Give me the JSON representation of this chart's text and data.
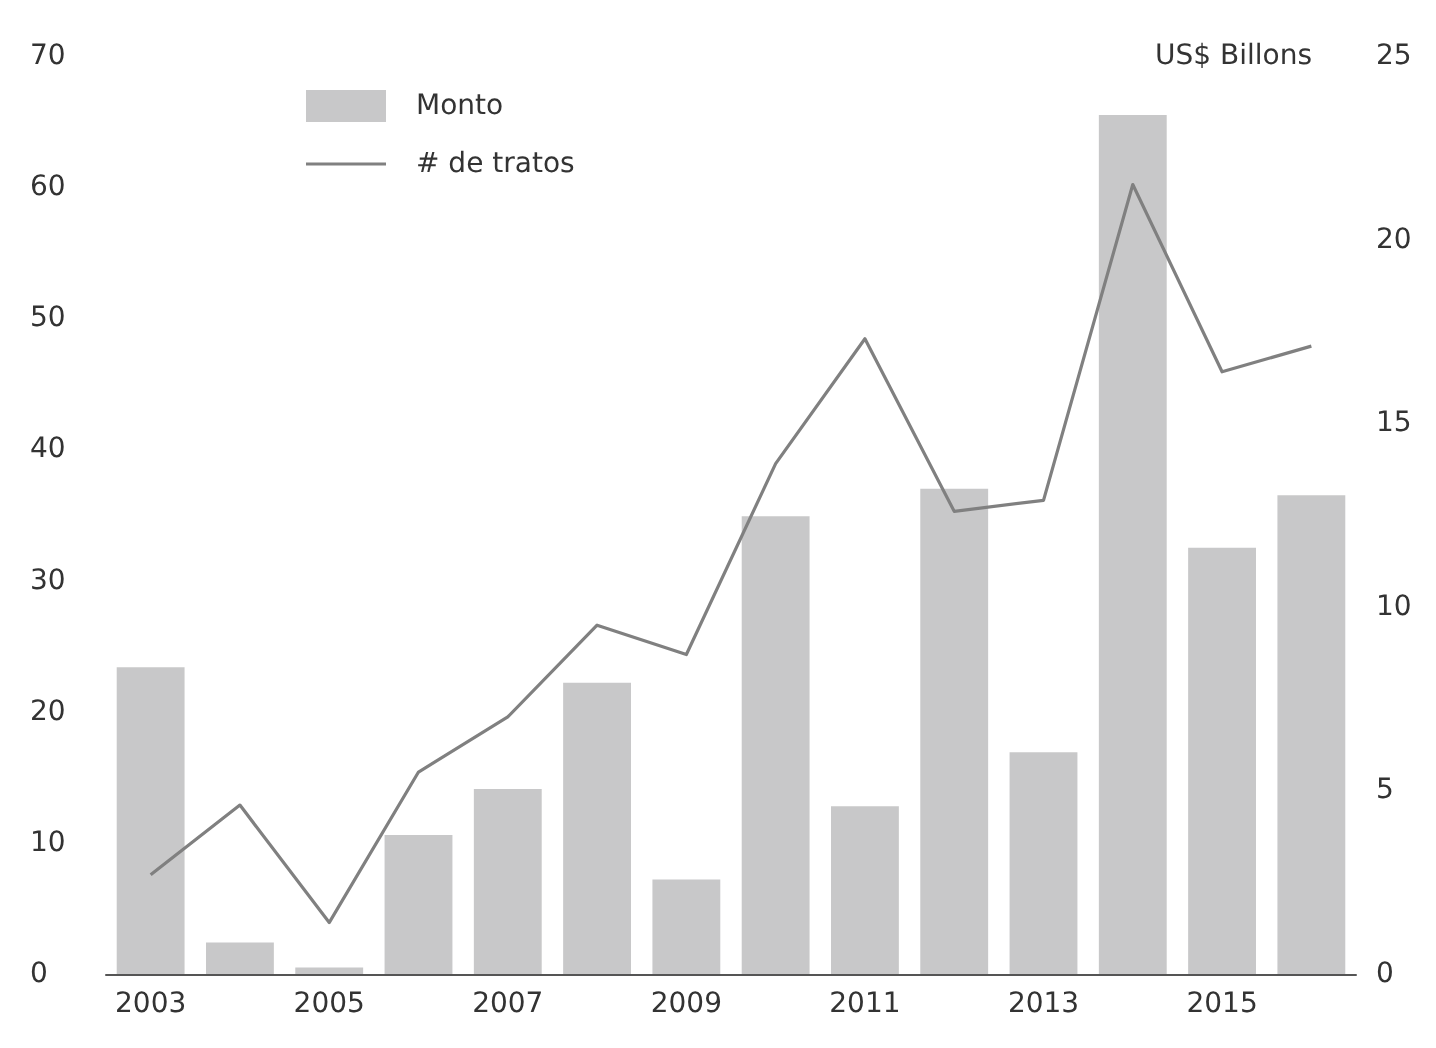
{
  "chart_data": {
    "type": "bar",
    "categories": [
      "2003",
      null,
      "2005",
      null,
      "2007",
      null,
      "2009",
      null,
      "2011",
      null,
      "2013",
      null,
      "2015",
      null
    ],
    "series": [
      {
        "name": "Monto",
        "color": "#c8c8c9",
        "values": [
          23.4,
          2.4,
          0.5,
          10.6,
          14.1,
          22.2,
          7.2,
          34.9,
          12.8,
          37.0,
          16.9,
          65.5,
          32.5,
          36.5
        ]
      },
      {
        "name": "# de tratos",
        "type": "line",
        "axis": "y2",
        "color": "#808080",
        "values": [
          2.7,
          4.6,
          1.4,
          5.5,
          7.0,
          9.5,
          8.7,
          13.9,
          17.3,
          12.6,
          12.9,
          21.5,
          16.4,
          17.1
        ]
      }
    ],
    "ylim": [
      0,
      70
    ],
    "yticks": [
      0,
      10,
      20,
      30,
      40,
      50,
      60,
      70
    ],
    "y2lim": [
      0,
      25
    ],
    "y2ticks": [
      0,
      5,
      10,
      15,
      20,
      25
    ],
    "y2label": "US$ Billons",
    "grid": false,
    "legend": "top left",
    "marker": "none",
    "line_style": "solid"
  }
}
